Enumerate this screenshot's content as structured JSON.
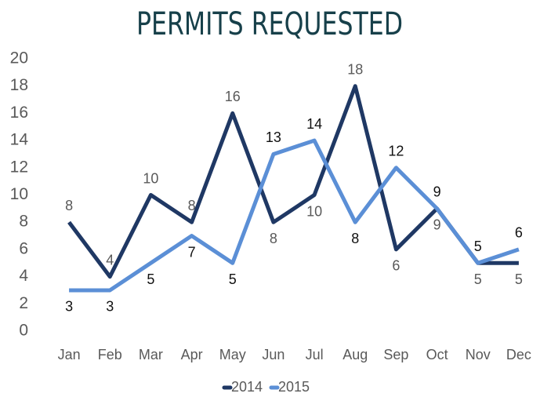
{
  "chart_data": {
    "type": "line",
    "title": "PERMITS REQUESTED",
    "categories": [
      "Jan",
      "Feb",
      "Mar",
      "Apr",
      "May",
      "Jun",
      "Jul",
      "Aug",
      "Sep",
      "Oct",
      "Nov",
      "Dec"
    ],
    "series": [
      {
        "name": "2014",
        "color": "#1f3864",
        "values": [
          8,
          4,
          10,
          8,
          16,
          8,
          10,
          18,
          6,
          9,
          5,
          5
        ]
      },
      {
        "name": "2015",
        "color": "#5b8fd6",
        "values": [
          3,
          3,
          5,
          7,
          5,
          13,
          14,
          8,
          12,
          9,
          5,
          6
        ]
      }
    ],
    "ylim": [
      0,
      20
    ],
    "yticks": [
      0,
      2,
      4,
      6,
      8,
      10,
      12,
      14,
      16,
      18,
      20
    ],
    "grid": false,
    "legend": "bottom"
  }
}
